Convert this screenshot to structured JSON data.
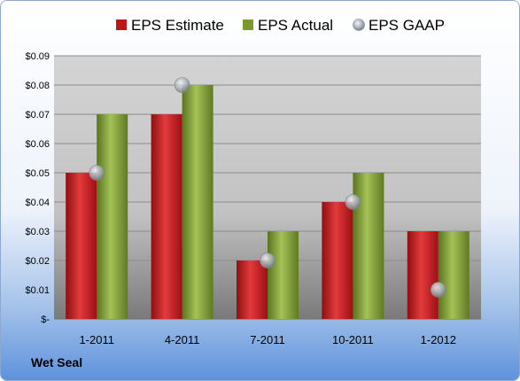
{
  "company": "Wet Seal",
  "colors": {
    "estimate": "#c0161a",
    "actual": "#7a9a2e",
    "gaap": "#9aa4ae"
  },
  "chart_data": {
    "type": "bar",
    "categories": [
      "1-2011",
      "4-2011",
      "7-2011",
      "10-2011",
      "1-2012"
    ],
    "series": [
      {
        "name": "EPS Estimate",
        "values": [
          0.05,
          0.07,
          0.02,
          0.04,
          0.03
        ]
      },
      {
        "name": "EPS Actual",
        "values": [
          0.07,
          0.08,
          0.03,
          0.05,
          0.03
        ]
      },
      {
        "name": "EPS GAAP",
        "values": [
          0.05,
          0.08,
          0.02,
          0.04,
          0.01
        ],
        "marker": "circle"
      }
    ],
    "y_ticks": [
      "$-",
      "$0.01",
      "$0.02",
      "$0.03",
      "$0.04",
      "$0.05",
      "$0.06",
      "$0.07",
      "$0.08",
      "$0.09"
    ],
    "ylim": [
      0,
      0.09
    ],
    "legend": "top",
    "grid": true
  }
}
